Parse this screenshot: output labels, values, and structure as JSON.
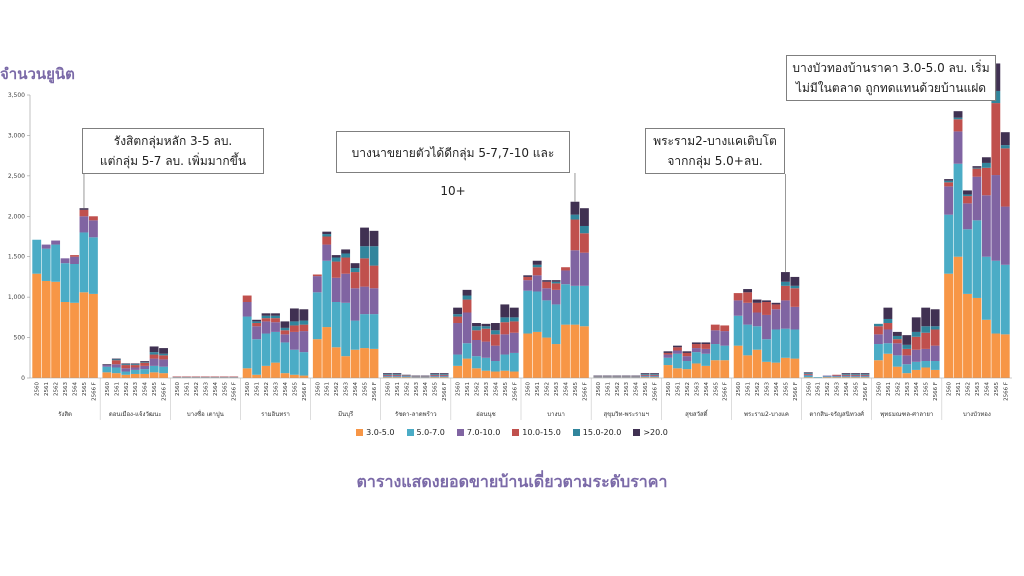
{
  "y_axis_title": "จำนวนยูนิต",
  "caption": "ตารางแสดงยอดขายบ้านเดี่ยวตามระดับราคา",
  "annotations": [
    {
      "id": "callout-1",
      "lines": [
        "รังสิตกลุ่มหลัก 3-5 ลบ.",
        "แต่กลุ่ม 5-7 ลบ. เพิ่มมากขึ้น"
      ],
      "zone": 0
    },
    {
      "id": "callout-2",
      "lines": [
        "บางนาขยายตัวได้ดีกลุ่ม 5-7,7-10 และ 10+"
      ],
      "zone": 8
    },
    {
      "id": "callout-3",
      "lines": [
        "พระราม2-บางแคเติบโต",
        "จากกลุ่ม 5.0+ลบ."
      ],
      "zone": 11
    },
    {
      "id": "callout-4",
      "lines": [
        "บางบัวทองบ้านราคา 3.0-5.0 ลบ. เริ่ม",
        "ไม่มีในตลาด ถูกทดแทนด้วยบ้านแฝด"
      ],
      "zone": 14
    }
  ],
  "colors": [
    "#f79646",
    "#4bacc6",
    "#8064a2",
    "#c0504d",
    "#31859c",
    "#403152"
  ],
  "chart_data": {
    "type": "bar",
    "stacked": true,
    "ylim": [
      0,
      3500
    ],
    "yticks": [
      0,
      500,
      1000,
      1500,
      2000,
      2500,
      3000,
      3500
    ],
    "year_labels": [
      "2560",
      "2561",
      "2562",
      "2563",
      "2564",
      "2565",
      "2566 F"
    ],
    "series_names": [
      "3.0-5.0",
      "5.0-7.0",
      "7.0-10.0",
      "10.0-15.0",
      "15.0-20.0",
      ">20.0"
    ],
    "zones": [
      {
        "name": "รังสิต",
        "bars": [
          [
            1290,
            420,
            0,
            0,
            0,
            0
          ],
          [
            1200,
            400,
            50,
            0,
            0,
            0
          ],
          [
            1190,
            460,
            50,
            0,
            0,
            0
          ],
          [
            940,
            480,
            60,
            0,
            0,
            0
          ],
          [
            930,
            480,
            90,
            20,
            0,
            0
          ],
          [
            1060,
            740,
            200,
            80,
            0,
            20
          ],
          [
            1040,
            700,
            210,
            50,
            0,
            0
          ]
        ]
      },
      {
        "name": "ดอนเมือง-แจ้งวัฒนะ",
        "bars": [
          [
            70,
            70,
            20,
            0,
            0,
            10
          ],
          [
            60,
            70,
            40,
            50,
            10,
            10
          ],
          [
            40,
            40,
            40,
            40,
            10,
            10
          ],
          [
            50,
            50,
            30,
            30,
            10,
            10
          ],
          [
            50,
            60,
            40,
            40,
            10,
            10
          ],
          [
            70,
            80,
            90,
            50,
            30,
            70
          ],
          [
            60,
            80,
            90,
            50,
            20,
            70
          ]
        ]
      },
      {
        "name": "บางซื่อ เตาปูน",
        "bars": [
          [
            5,
            5,
            5,
            5,
            0,
            0
          ],
          [
            5,
            5,
            5,
            5,
            0,
            0
          ],
          [
            5,
            5,
            5,
            5,
            0,
            0
          ],
          [
            5,
            5,
            5,
            5,
            0,
            0
          ],
          [
            5,
            5,
            5,
            5,
            0,
            0
          ],
          [
            5,
            5,
            5,
            5,
            0,
            0
          ],
          [
            5,
            5,
            5,
            5,
            0,
            0
          ]
        ]
      },
      {
        "name": "รามอินทรา",
        "bars": [
          [
            120,
            640,
            180,
            80,
            0,
            0
          ],
          [
            40,
            440,
            160,
            40,
            20,
            20
          ],
          [
            150,
            400,
            150,
            40,
            30,
            30
          ],
          [
            190,
            380,
            120,
            50,
            30,
            30
          ],
          [
            60,
            380,
            100,
            50,
            30,
            80
          ],
          [
            40,
            310,
            220,
            80,
            50,
            160
          ],
          [
            30,
            290,
            260,
            80,
            50,
            140
          ]
        ]
      },
      {
        "name": "มีนบุรี",
        "bars": [
          [
            480,
            580,
            200,
            20,
            0,
            0
          ],
          [
            630,
            820,
            200,
            100,
            30,
            30
          ],
          [
            380,
            560,
            300,
            200,
            50,
            30
          ],
          [
            270,
            660,
            360,
            200,
            50,
            50
          ],
          [
            350,
            360,
            400,
            200,
            50,
            60
          ],
          [
            370,
            420,
            340,
            350,
            150,
            230
          ],
          [
            360,
            430,
            320,
            280,
            240,
            190
          ]
        ]
      },
      {
        "name": "รัชดา-ลาดพร้าว",
        "bars": [
          [
            10,
            10,
            10,
            10,
            10,
            10
          ],
          [
            10,
            10,
            10,
            10,
            10,
            10
          ],
          [
            10,
            10,
            5,
            5,
            5,
            5
          ],
          [
            5,
            5,
            5,
            5,
            5,
            5
          ],
          [
            5,
            5,
            5,
            5,
            5,
            5
          ],
          [
            10,
            10,
            10,
            10,
            10,
            10
          ],
          [
            10,
            10,
            10,
            10,
            10,
            10
          ]
        ]
      },
      {
        "name": "อ่อนนุช",
        "bars": [
          [
            150,
            140,
            390,
            80,
            30,
            80
          ],
          [
            240,
            190,
            380,
            160,
            50,
            70
          ],
          [
            120,
            150,
            200,
            120,
            50,
            40
          ],
          [
            90,
            160,
            200,
            160,
            30,
            30
          ],
          [
            80,
            130,
            190,
            140,
            50,
            90
          ],
          [
            90,
            200,
            250,
            150,
            60,
            160
          ],
          [
            80,
            230,
            250,
            140,
            50,
            120
          ]
        ]
      },
      {
        "name": "บางนา",
        "bars": [
          [
            550,
            530,
            130,
            40,
            0,
            20
          ],
          [
            570,
            500,
            200,
            100,
            30,
            50
          ],
          [
            500,
            460,
            150,
            80,
            0,
            20
          ],
          [
            420,
            490,
            180,
            80,
            20,
            20
          ],
          [
            660,
            500,
            170,
            40,
            0,
            0
          ],
          [
            660,
            480,
            440,
            380,
            60,
            160
          ],
          [
            640,
            500,
            410,
            240,
            90,
            220
          ]
        ]
      },
      {
        "name": "สุขุมวิท-พระรามฯ",
        "bars": [
          [
            5,
            5,
            5,
            5,
            5,
            5
          ],
          [
            5,
            5,
            5,
            5,
            5,
            5
          ],
          [
            5,
            5,
            5,
            5,
            5,
            5
          ],
          [
            5,
            5,
            5,
            5,
            5,
            5
          ],
          [
            5,
            5,
            5,
            5,
            5,
            5
          ],
          [
            10,
            10,
            10,
            10,
            10,
            10
          ],
          [
            10,
            10,
            10,
            10,
            10,
            10
          ]
        ]
      },
      {
        "name": "สุขสวัสดิ์",
        "bars": [
          [
            160,
            90,
            40,
            20,
            0,
            20
          ],
          [
            120,
            180,
            40,
            40,
            0,
            20
          ],
          [
            110,
            100,
            60,
            40,
            0,
            20
          ],
          [
            180,
            140,
            50,
            50,
            0,
            20
          ],
          [
            150,
            150,
            60,
            60,
            0,
            20
          ],
          [
            220,
            200,
            170,
            70,
            0,
            0
          ],
          [
            220,
            180,
            180,
            70,
            0,
            0
          ]
        ]
      },
      {
        "name": "พระราม2-บางแค",
        "bars": [
          [
            400,
            370,
            190,
            90,
            0,
            0
          ],
          [
            280,
            380,
            270,
            130,
            0,
            40
          ],
          [
            350,
            290,
            170,
            120,
            0,
            40
          ],
          [
            200,
            280,
            300,
            160,
            0,
            20
          ],
          [
            190,
            410,
            250,
            60,
            0,
            20
          ],
          [
            250,
            360,
            350,
            180,
            50,
            120
          ],
          [
            240,
            360,
            280,
            230,
            30,
            110
          ]
        ]
      },
      {
        "name": "ตากสิน-จรัญสนิทวงศ์",
        "bars": [
          [
            10,
            20,
            10,
            10,
            10,
            10
          ],
          [
            0,
            10,
            0,
            0,
            0,
            0
          ],
          [
            10,
            10,
            10,
            0,
            0,
            0
          ],
          [
            10,
            10,
            10,
            10,
            0,
            0
          ],
          [
            10,
            10,
            10,
            10,
            10,
            10
          ],
          [
            10,
            10,
            10,
            10,
            10,
            10
          ],
          [
            10,
            10,
            10,
            10,
            10,
            10
          ]
        ]
      },
      {
        "name": "พุทธมณฑล-ศาลายา",
        "bars": [
          [
            220,
            200,
            120,
            100,
            30,
            0
          ],
          [
            300,
            130,
            170,
            80,
            50,
            140
          ],
          [
            140,
            140,
            150,
            50,
            40,
            50
          ],
          [
            60,
            110,
            110,
            80,
            50,
            120
          ],
          [
            100,
            100,
            150,
            160,
            60,
            180
          ],
          [
            130,
            80,
            150,
            200,
            80,
            230
          ],
          [
            100,
            110,
            190,
            200,
            40,
            210
          ]
        ]
      },
      {
        "name": "บางบัวทอง",
        "bars": [
          [
            1290,
            730,
            350,
            50,
            20,
            20
          ],
          [
            1500,
            1150,
            400,
            150,
            20,
            80
          ],
          [
            1040,
            800,
            320,
            90,
            20,
            50
          ],
          [
            990,
            960,
            540,
            100,
            10,
            20
          ],
          [
            720,
            780,
            760,
            340,
            60,
            70
          ],
          [
            550,
            900,
            1060,
            890,
            150,
            340
          ],
          [
            540,
            860,
            720,
            720,
            40,
            160
          ]
        ]
      }
    ]
  }
}
